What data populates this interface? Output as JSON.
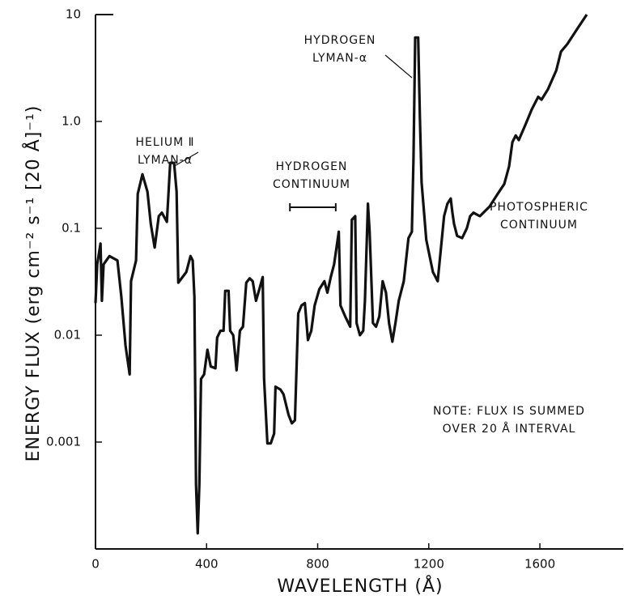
{
  "chart_data": {
    "type": "line",
    "ylog": true,
    "xlabel": "WAVELENGTH (Å)",
    "ylabel": "ENERGY FLUX (erg cm⁻² s⁻¹ [20 Å]⁻¹)",
    "xlim": [
      0,
      1900
    ],
    "ylim": [
      0.0001,
      10
    ],
    "xticks": [
      0,
      400,
      800,
      1200,
      1600
    ],
    "yticks": [
      0.001,
      0.01,
      0.1,
      {
        "value": 1,
        "label": "1.0"
      },
      10
    ],
    "color": "#111111",
    "x": [
      0,
      6,
      18,
      23,
      29,
      50,
      79,
      93,
      108,
      123,
      128,
      146,
      152,
      169,
      187,
      199,
      213,
      228,
      239,
      257,
      269,
      283,
      292,
      298,
      327,
      342,
      350,
      356,
      362,
      368,
      374,
      380,
      391,
      403,
      415,
      432,
      438,
      450,
      461,
      467,
      479,
      485,
      496,
      508,
      520,
      531,
      543,
      555,
      566,
      578,
      590,
      602,
      607,
      619,
      631,
      643,
      648,
      666,
      677,
      695,
      707,
      718,
      730,
      742,
      754,
      765,
      777,
      789,
      806,
      824,
      835,
      847,
      859,
      876,
      882,
      899,
      917,
      923,
      935,
      940,
      952,
      964,
      970,
      981,
      987,
      999,
      1010,
      1022,
      1034,
      1046,
      1057,
      1069,
      1080,
      1092,
      1110,
      1127,
      1139,
      1145,
      1151,
      1162,
      1168,
      1174,
      1191,
      1215,
      1232,
      1244,
      1255,
      1267,
      1279,
      1285,
      1291,
      1302,
      1320,
      1337,
      1349,
      1361,
      1384,
      1419,
      1448,
      1472,
      1489,
      1501,
      1513,
      1524,
      1547,
      1571,
      1594,
      1606,
      1629,
      1659,
      1676,
      1699,
      1734,
      1769
    ],
    "values": [
      0.02,
      0.046,
      0.072,
      0.021,
      0.046,
      0.055,
      0.05,
      0.023,
      0.008,
      0.0043,
      0.032,
      0.05,
      0.21,
      0.32,
      0.22,
      0.11,
      0.066,
      0.13,
      0.14,
      0.115,
      0.41,
      0.41,
      0.22,
      0.031,
      0.039,
      0.055,
      0.05,
      0.023,
      0.0004,
      0.00014,
      0.0004,
      0.0039,
      0.0043,
      0.0073,
      0.0051,
      0.0049,
      0.0095,
      0.011,
      0.011,
      0.026,
      0.026,
      0.011,
      0.01,
      0.0047,
      0.011,
      0.012,
      0.031,
      0.034,
      0.032,
      0.021,
      0.027,
      0.035,
      0.0039,
      0.00097,
      0.00097,
      0.0012,
      0.0033,
      0.0031,
      0.0028,
      0.0018,
      0.0015,
      0.0016,
      0.016,
      0.019,
      0.02,
      0.009,
      0.011,
      0.019,
      0.027,
      0.032,
      0.025,
      0.035,
      0.046,
      0.093,
      0.019,
      0.015,
      0.012,
      0.12,
      0.13,
      0.013,
      0.01,
      0.011,
      0.021,
      0.17,
      0.093,
      0.013,
      0.012,
      0.015,
      0.032,
      0.025,
      0.013,
      0.0087,
      0.013,
      0.021,
      0.032,
      0.081,
      0.093,
      0.45,
      6.1,
      6.1,
      1.1,
      0.27,
      0.078,
      0.039,
      0.032,
      0.066,
      0.13,
      0.17,
      0.19,
      0.14,
      0.11,
      0.085,
      0.081,
      0.1,
      0.13,
      0.14,
      0.13,
      0.16,
      0.21,
      0.26,
      0.38,
      0.64,
      0.74,
      0.67,
      0.92,
      1.3,
      1.7,
      1.6,
      2.0,
      3.0,
      4.5,
      5.3,
      7.3,
      10
    ],
    "annotations": [
      {
        "lines": [
          "HELIUM Ⅱ",
          "LYMAN-α"
        ]
      },
      {
        "lines": [
          "HYDROGEN",
          "LYMAN-α"
        ]
      },
      {
        "lines": [
          "HYDROGEN",
          "CONTINUUM"
        ],
        "span": [
          700,
          865
        ]
      },
      {
        "lines": [
          "PHOTOSPHERIC",
          "CONTINUUM"
        ]
      },
      {
        "lines": [
          "NOTE: FLUX IS SUMMED",
          "OVER 20 Å INTERVAL"
        ]
      }
    ]
  }
}
